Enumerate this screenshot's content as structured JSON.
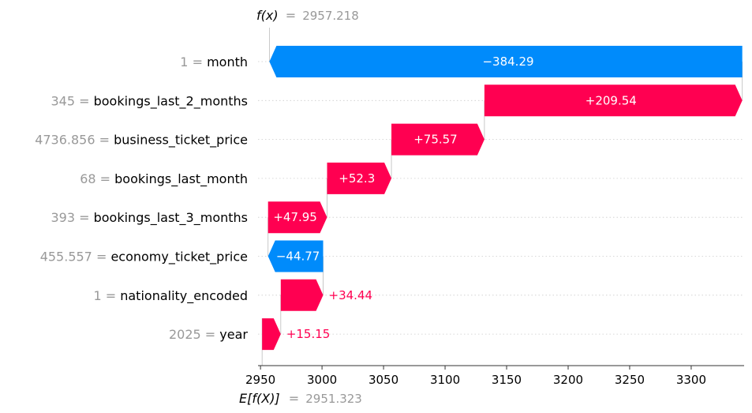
{
  "chart_data": {
    "type": "waterfall",
    "fx_label": "f(x)",
    "fx_value": "2957.218",
    "ex_label": "E[f(X)]",
    "ex_value": "2951.323",
    "base_value": 2951.323,
    "final_value": 2957.218,
    "xlim": [
      2948,
      3343
    ],
    "x_ticks": [
      2950,
      3000,
      3050,
      3100,
      3150,
      3200,
      3250,
      3300
    ],
    "features": [
      {
        "value": "1",
        "name": "month",
        "shap": -384.29,
        "label": "−384.29"
      },
      {
        "value": "345",
        "name": "bookings_last_2_months",
        "shap": 209.54,
        "label": "+209.54"
      },
      {
        "value": "4736.856",
        "name": "business_ticket_price",
        "shap": 75.57,
        "label": "+75.57"
      },
      {
        "value": "68",
        "name": "bookings_last_month",
        "shap": 52.3,
        "label": "+52.3"
      },
      {
        "value": "393",
        "name": "bookings_last_3_months",
        "shap": 47.95,
        "label": "+47.95"
      },
      {
        "value": "455.557",
        "name": "economy_ticket_price",
        "shap": -44.77,
        "label": "−44.77"
      },
      {
        "value": "1",
        "name": "nationality_encoded",
        "shap": 34.44,
        "label": "+34.44"
      },
      {
        "value": "2025",
        "name": "year",
        "shap": 15.15,
        "label": "+15.15"
      }
    ],
    "colors": {
      "positive": "#ff0051",
      "negative": "#008bfb",
      "grid": "#cccccc",
      "muted": "#999999"
    }
  }
}
